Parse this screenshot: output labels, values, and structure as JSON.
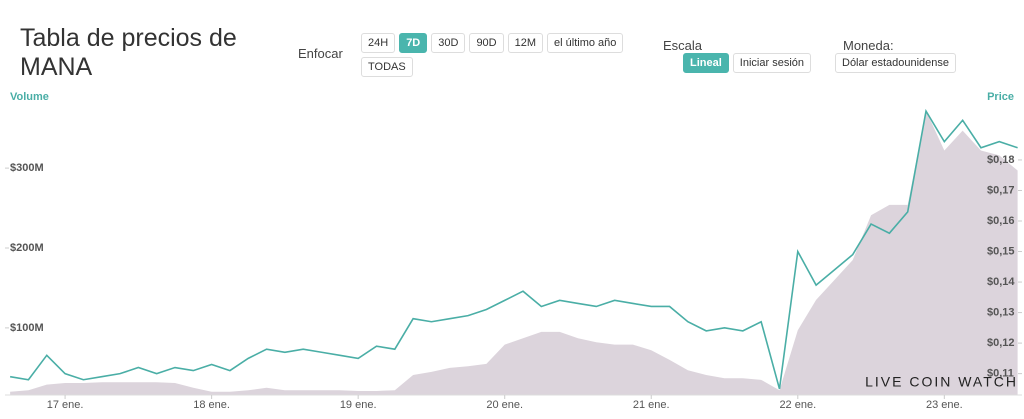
{
  "title": "Tabla de precios de MANA",
  "zoom": {
    "label": "Enfocar",
    "options": [
      "24H",
      "7D",
      "30D",
      "90D",
      "12M",
      "el último año",
      "TODAS"
    ]
  },
  "scale": {
    "label": "Escala",
    "options": [
      "Lineal",
      "Iniciar sesión"
    ]
  },
  "currency": {
    "label": "Moneda:",
    "value": "Dólar estadounidense"
  },
  "chart_data": {
    "type": "line",
    "watermark": "LIVE COIN WATCH",
    "x": [
      -0.375,
      -0.25,
      -0.125,
      0,
      0.125,
      0.25,
      0.375,
      0.5,
      0.625,
      0.75,
      0.875,
      1,
      1.125,
      1.25,
      1.375,
      1.5,
      1.625,
      1.75,
      1.875,
      2,
      2.125,
      2.25,
      2.375,
      2.5,
      2.625,
      2.75,
      2.875,
      3,
      3.125,
      3.25,
      3.375,
      3.5,
      3.625,
      3.75,
      3.875,
      4,
      4.125,
      4.25,
      4.375,
      4.5,
      4.625,
      4.75,
      4.875,
      5,
      5.125,
      5.25,
      5.375,
      5.5,
      5.625,
      5.75,
      5.875,
      6,
      6.125,
      6.25,
      6.375,
      6.5
    ],
    "xlim": [
      -0.41,
      6.53
    ],
    "xticks": [
      {
        "value": 0,
        "label": "17 ene."
      },
      {
        "value": 1,
        "label": "18 ene."
      },
      {
        "value": 2,
        "label": "19 ene."
      },
      {
        "value": 3,
        "label": "20 ene."
      },
      {
        "value": 4,
        "label": "21 ene."
      },
      {
        "value": 5,
        "label": "22 ene."
      },
      {
        "value": 6,
        "label": "23 ene."
      }
    ],
    "ylim": [
      16000000,
      379000000
    ],
    "yticks": [
      {
        "value": 100000000,
        "label": "$100M"
      },
      {
        "value": 200000000,
        "label": "$200M"
      },
      {
        "value": 300000000,
        "label": "$300M"
      }
    ],
    "y2lim": [
      0.103,
      0.198
    ],
    "y2ticks": [
      {
        "value": 0.11,
        "label": "$0,11"
      },
      {
        "value": 0.12,
        "label": "$0,12"
      },
      {
        "value": 0.13,
        "label": "$0,13"
      },
      {
        "value": 0.14,
        "label": "$0,14"
      },
      {
        "value": 0.15,
        "label": "$0,15"
      },
      {
        "value": 0.16,
        "label": "$0,16"
      },
      {
        "value": 0.17,
        "label": "$0,17"
      },
      {
        "value": 0.18,
        "label": "$0,18"
      }
    ],
    "series": [
      {
        "name": "Price",
        "axis": "y2",
        "type": "line",
        "color": "#4aaea6",
        "values": [
          0.109,
          0.108,
          0.116,
          0.11,
          0.108,
          0.109,
          0.11,
          0.112,
          0.11,
          0.112,
          0.111,
          0.113,
          0.111,
          0.115,
          0.118,
          0.117,
          0.118,
          0.117,
          0.116,
          0.115,
          0.119,
          0.118,
          0.128,
          0.127,
          0.128,
          0.129,
          0.131,
          0.134,
          0.137,
          0.132,
          0.134,
          0.133,
          0.132,
          0.134,
          0.133,
          0.132,
          0.132,
          0.127,
          0.124,
          0.125,
          0.124,
          0.127,
          0.105,
          0.15,
          0.139,
          0.144,
          0.149,
          0.159,
          0.156,
          0.163,
          0.196,
          0.186,
          0.193,
          0.184,
          0.186,
          0.184
        ]
      },
      {
        "name": "Volume",
        "axis": "y",
        "type": "area",
        "color": "#dcd4dc",
        "values": [
          20000000,
          22000000,
          29000000,
          31000000,
          31000000,
          32000000,
          32000000,
          32000000,
          32000000,
          31000000,
          25000000,
          20000000,
          20000000,
          22000000,
          25000000,
          22000000,
          22000000,
          22000000,
          22000000,
          21000000,
          21000000,
          22000000,
          41000000,
          45000000,
          50000000,
          52000000,
          55000000,
          79000000,
          87000000,
          95000000,
          95000000,
          87000000,
          82000000,
          79000000,
          79000000,
          72000000,
          60000000,
          47000000,
          41000000,
          37000000,
          37000000,
          35000000,
          22000000,
          97000000,
          135000000,
          160000000,
          185000000,
          241000000,
          254000000,
          254000000,
          372000000,
          322000000,
          347000000,
          322000000,
          316000000,
          297000000
        ]
      }
    ]
  }
}
